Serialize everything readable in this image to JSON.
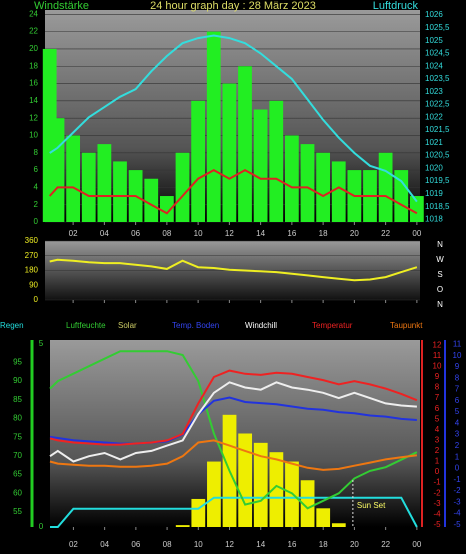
{
  "chart_data": [
    {
      "type": "combo",
      "title": "24 hour graph day : 28 März 2023",
      "y_label": "Windstärke",
      "y2_label": "Luftdruck",
      "x": [
        0.5,
        1,
        2,
        3,
        4,
        5,
        6,
        7,
        8,
        9,
        10,
        11,
        12,
        13,
        14,
        15,
        16,
        17,
        18,
        19,
        20,
        21,
        22,
        23,
        24
      ],
      "xlim": [
        0.2,
        24.2
      ],
      "xticks": [
        {
          "value": 2,
          "label": "02"
        },
        {
          "value": 4,
          "label": "04"
        },
        {
          "value": 6,
          "label": "06"
        },
        {
          "value": 8,
          "label": "08"
        },
        10,
        12,
        14,
        16,
        18,
        20,
        22,
        {
          "value": 24,
          "label": "00"
        }
      ],
      "ylim": [
        0,
        24.5
      ],
      "yticks": [
        0,
        2,
        4,
        6,
        8,
        10,
        12,
        14,
        16,
        18,
        20,
        22,
        24
      ],
      "y2lim": [
        1017.9,
        1026.2
      ],
      "y2ticks": [
        1018,
        {
          "value": 1018.5,
          "label": "1018,5"
        },
        1019,
        {
          "value": 1019.5,
          "label": "1019,5"
        },
        1020,
        {
          "value": 1020.5,
          "label": "1020,5"
        },
        1021,
        {
          "value": 1021.5,
          "label": "1021,5"
        },
        1022,
        {
          "value": 1022.5,
          "label": "1022,5"
        },
        1023,
        {
          "value": 1023.5,
          "label": "1023,5"
        },
        1024,
        {
          "value": 1024.5,
          "label": "1024,5"
        },
        1025,
        {
          "value": 1025.5,
          "label": "1025,5"
        },
        1026
      ],
      "grid": true,
      "series": [
        {
          "type": "bar",
          "color": "#22ee22",
          "values": [
            20,
            12,
            10,
            8,
            9,
            7,
            6,
            5,
            3,
            8,
            14,
            22,
            16,
            18,
            13,
            14,
            10,
            9,
            8,
            7,
            6,
            6,
            8,
            6,
            3
          ]
        },
        {
          "type": "line",
          "color": "#dd2222",
          "values": [
            3,
            4,
            4,
            3,
            3,
            3,
            3,
            2,
            1,
            3,
            5,
            6,
            5,
            6,
            5,
            5,
            4,
            4,
            3,
            4,
            3,
            3,
            3,
            2,
            1
          ]
        },
        {
          "type": "line",
          "color": "#33dddd",
          "axis": "y2",
          "values": [
            1020.6,
            1020.8,
            1021.4,
            1022.0,
            1022.4,
            1022.8,
            1023.1,
            1023.8,
            1024.4,
            1024.9,
            1025.1,
            1025.2,
            1025.1,
            1024.9,
            1024.5,
            1024.0,
            1023.5,
            1022.7,
            1021.9,
            1021.2,
            1020.6,
            1020.1,
            1019.9,
            1019.5,
            1018.7
          ]
        }
      ]
    },
    {
      "type": "line",
      "x": [
        0.5,
        1,
        2,
        3,
        4,
        5,
        6,
        7,
        8,
        9,
        10,
        11,
        12,
        13,
        14,
        15,
        16,
        17,
        18,
        19,
        20,
        21,
        22,
        23,
        24
      ],
      "xlim": [
        0.2,
        24.2
      ],
      "xticks": [
        {
          "value": 2,
          "label": "02"
        },
        {
          "value": 4,
          "label": "04"
        },
        {
          "value": 6,
          "label": "06"
        },
        {
          "value": 8,
          "label": "08"
        },
        10,
        12,
        14,
        16,
        18,
        20,
        22,
        {
          "value": 24,
          "label": "00"
        }
      ],
      "ylim": [
        0,
        360
      ],
      "yticks": [
        0,
        90,
        180,
        270,
        360
      ],
      "direction_labels": [
        "N",
        "W",
        "S",
        "O",
        "N"
      ],
      "grid": true,
      "series": [
        {
          "type": "line",
          "color": "#eeee22",
          "values": [
            235,
            245,
            240,
            230,
            225,
            225,
            215,
            205,
            190,
            240,
            200,
            195,
            185,
            180,
            175,
            170,
            160,
            150,
            140,
            130,
            120,
            125,
            140,
            170,
            200
          ]
        }
      ]
    },
    {
      "type": "combo",
      "x": [
        0.5,
        1,
        2,
        3,
        4,
        5,
        6,
        7,
        8,
        9,
        10,
        11,
        12,
        13,
        14,
        15,
        16,
        17,
        18,
        19,
        20,
        21,
        22,
        23,
        24
      ],
      "xlim": [
        0.5,
        24.2
      ],
      "xticks": [
        {
          "value": 2,
          "label": "02"
        },
        {
          "value": 4,
          "label": "04"
        },
        {
          "value": 6,
          "label": "06"
        },
        {
          "value": 8,
          "label": "08"
        },
        10,
        12,
        14,
        16,
        18,
        20,
        22,
        {
          "value": 24,
          "label": "00"
        }
      ],
      "ylim": [
        51,
        101
      ],
      "yticks": [
        55,
        60,
        65,
        70,
        75,
        80,
        85,
        90,
        95
      ],
      "y2lim": [
        -5.2,
        12.5
      ],
      "y2ticks": [
        -5,
        -4,
        -3,
        -2,
        -1,
        0,
        1,
        2,
        3,
        4,
        5,
        6,
        7,
        8,
        9,
        10,
        11,
        12
      ],
      "y3lim": [
        -5.2,
        11.4
      ],
      "y3ticks": [
        -5,
        -4,
        -3,
        -2,
        -1,
        0,
        1,
        2,
        3,
        4,
        5,
        6,
        7,
        8,
        9,
        10,
        11
      ],
      "y4lim": [
        0,
        5.1
      ],
      "y4ticks": [
        0,
        5
      ],
      "y5lim": [
        0,
        1000
      ],
      "annotations": [
        {
          "text": "Sun Set",
          "x": 19.9
        }
      ],
      "series": [
        {
          "name": "Regen",
          "type": "line",
          "color": "#22dddd",
          "axis": "y4",
          "values": [
            0,
            0,
            0.5,
            0.5,
            0.5,
            0.5,
            0.5,
            0.5,
            0.5,
            0.5,
            0.5,
            0.8,
            0.8,
            0.8,
            0.8,
            0.8,
            0.8,
            0.8,
            0.8,
            0.8,
            0.8,
            0.8,
            0.8,
            0.8,
            0
          ]
        },
        {
          "name": "Luftfeuchte",
          "type": "line",
          "color": "#33cc33",
          "values": [
            88,
            90,
            92,
            94,
            96,
            98,
            98,
            98,
            98,
            97,
            90,
            76,
            66,
            57,
            58,
            62,
            60,
            56,
            58,
            60,
            64,
            66,
            67,
            69,
            71
          ]
        },
        {
          "name": "Solar",
          "type": "bar",
          "color": "#eeee00",
          "axis": "y5",
          "values": [
            0,
            0,
            0,
            0,
            0,
            0,
            0,
            0,
            0,
            10,
            150,
            350,
            600,
            500,
            450,
            400,
            350,
            250,
            100,
            20,
            0,
            0,
            0,
            0,
            0
          ]
        },
        {
          "name": "Temp. Boden",
          "type": "line",
          "color": "#2233dd",
          "axis": "y3",
          "values": [
            2.8,
            2.7,
            2.5,
            2.4,
            2.3,
            2.2,
            2.2,
            2.3,
            2.4,
            3.0,
            4.8,
            6.0,
            6.3,
            5.9,
            5.8,
            5.7,
            5.5,
            5.3,
            5.2,
            5.0,
            4.9,
            4.7,
            4.6,
            4.4,
            4.3
          ]
        },
        {
          "name": "Windchill",
          "type": "line",
          "color": "#eeeeee",
          "axis": "y2",
          "values": [
            1.5,
            2.0,
            1.0,
            1.5,
            1.8,
            1.2,
            1.8,
            2.0,
            2.5,
            3.0,
            5.5,
            7.5,
            8.5,
            8.0,
            7.8,
            8.5,
            8.0,
            7.8,
            7.5,
            7.0,
            7.5,
            7.0,
            6.5,
            6.3,
            6.2
          ]
        },
        {
          "name": "Temperatur",
          "type": "line",
          "color": "#ee2222",
          "axis": "y2",
          "values": [
            3.2,
            3.0,
            2.8,
            2.7,
            2.6,
            2.6,
            2.7,
            2.8,
            3.0,
            3.6,
            6.5,
            9.0,
            9.6,
            9.3,
            9.2,
            9.4,
            9.3,
            9.0,
            8.7,
            8.3,
            8.6,
            8.3,
            7.9,
            7.4,
            6.8
          ]
        },
        {
          "name": "Taupunkt",
          "type": "line",
          "color": "#ee7711",
          "axis": "y2",
          "values": [
            1.0,
            0.8,
            0.7,
            0.6,
            0.6,
            0.5,
            0.5,
            0.6,
            0.8,
            1.5,
            2.8,
            3.0,
            2.5,
            2.0,
            1.5,
            1.2,
            0.8,
            0.4,
            0.2,
            0.3,
            0.6,
            0.9,
            1.2,
            1.4,
            1.6
          ]
        }
      ]
    }
  ]
}
